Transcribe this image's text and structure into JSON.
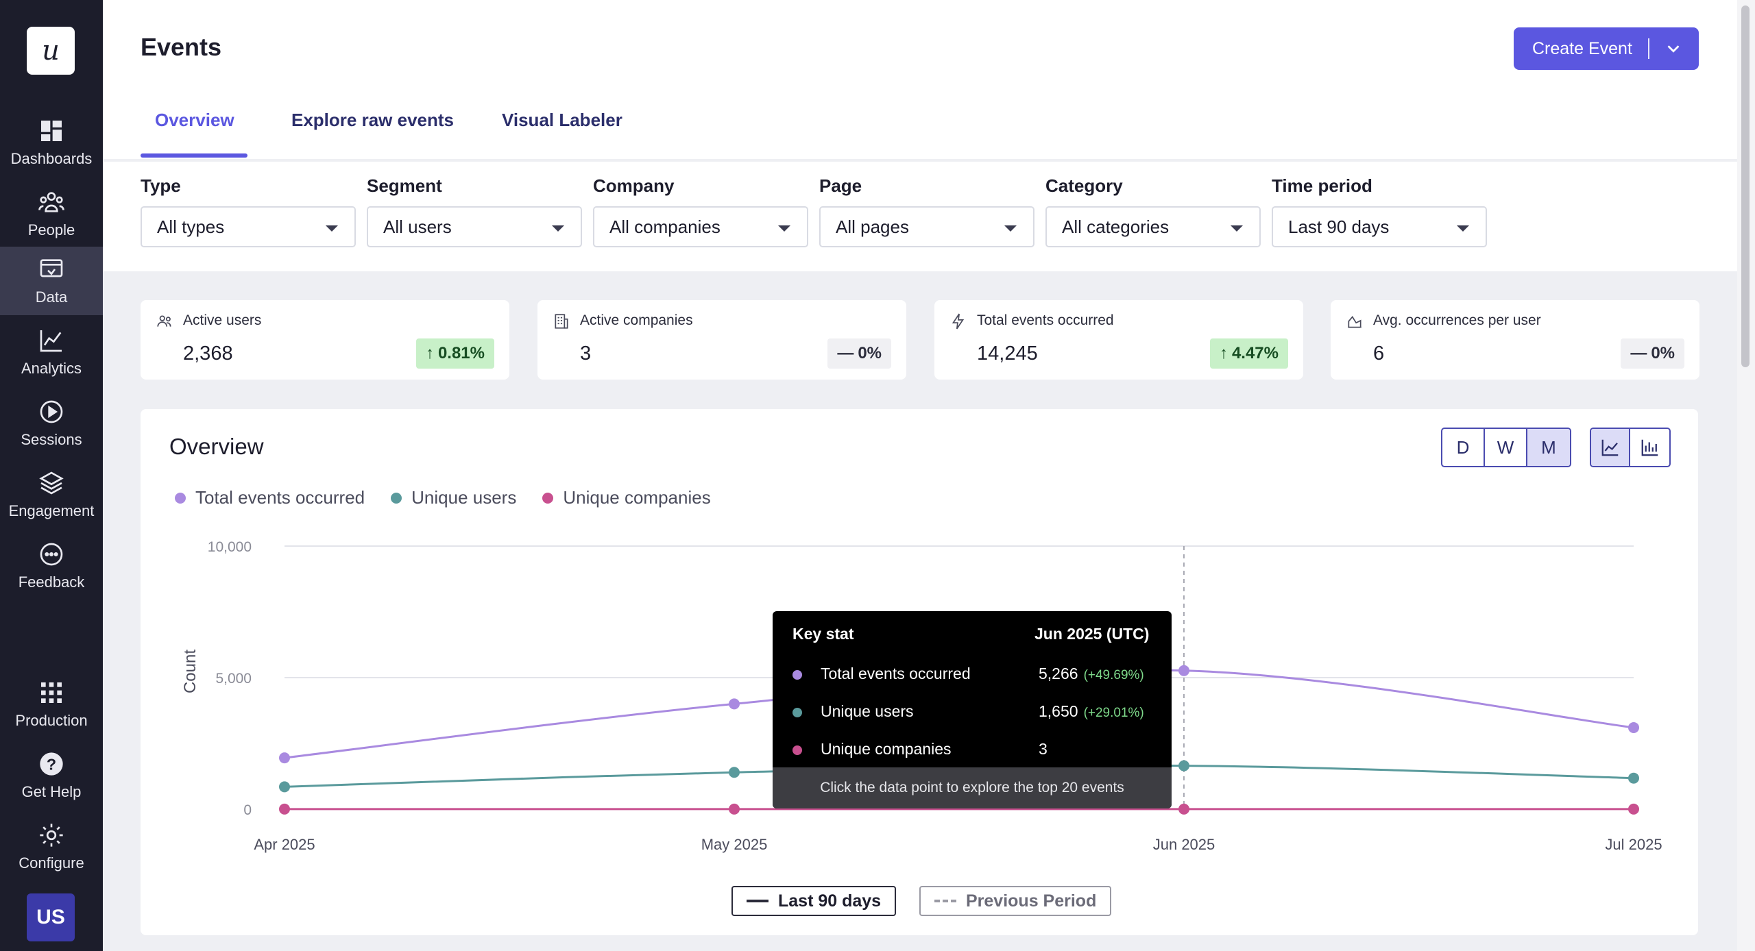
{
  "sidebar": {
    "logo": "u",
    "items": [
      {
        "label": "Dashboards",
        "icon": "dashboards-icon"
      },
      {
        "label": "People",
        "icon": "people-icon"
      },
      {
        "label": "Data",
        "icon": "data-icon",
        "active": true
      },
      {
        "label": "Analytics",
        "icon": "analytics-icon"
      },
      {
        "label": "Sessions",
        "icon": "sessions-icon"
      },
      {
        "label": "Engagement",
        "icon": "engagement-icon"
      },
      {
        "label": "Feedback",
        "icon": "feedback-icon"
      },
      {
        "label": "Production",
        "icon": "production-grid-icon"
      },
      {
        "label": "Get Help",
        "icon": "help-icon"
      },
      {
        "label": "Configure",
        "icon": "gear-icon"
      }
    ],
    "avatar": "US"
  },
  "header": {
    "title": "Events",
    "create_button": "Create Event",
    "tabs": [
      {
        "label": "Overview",
        "active": true
      },
      {
        "label": "Explore raw events"
      },
      {
        "label": "Visual Labeler"
      }
    ]
  },
  "filters": [
    {
      "label": "Type",
      "value": "All types"
    },
    {
      "label": "Segment",
      "value": "All users"
    },
    {
      "label": "Company",
      "value": "All companies"
    },
    {
      "label": "Page",
      "value": "All pages"
    },
    {
      "label": "Category",
      "value": "All categories"
    },
    {
      "label": "Time period",
      "value": "Last 90 days"
    }
  ],
  "stats": [
    {
      "title": "Active users",
      "value": "2,368",
      "change": "0.81%",
      "trend": "up",
      "icon": "users-icon"
    },
    {
      "title": "Active companies",
      "value": "3",
      "change": "0%",
      "trend": "flat",
      "icon": "building-icon"
    },
    {
      "title": "Total events occurred",
      "value": "14,245",
      "change": "4.47%",
      "trend": "up",
      "icon": "lightning-icon"
    },
    {
      "title": "Avg. occurrences per user",
      "value": "6",
      "change": "0%",
      "trend": "flat",
      "icon": "area-chart-icon"
    }
  ],
  "overview": {
    "title": "Overview",
    "granularity": [
      "D",
      "W",
      "M"
    ],
    "granularity_selected": "M",
    "view_modes": [
      "line-chart-icon",
      "bar-chart-icon"
    ],
    "view_selected": "line-chart-icon"
  },
  "tooltip": {
    "header_left": "Key stat",
    "header_right": "Jun 2025 (UTC)",
    "rows": [
      {
        "name": "Total events occurred",
        "value": "5,266",
        "change": "(+49.69%)"
      },
      {
        "name": "Unique users",
        "value": "1,650",
        "change": "(+29.01%)"
      },
      {
        "name": "Unique companies",
        "value": "3",
        "change": ""
      }
    ],
    "footer": "Click the data point to explore the top 20 events"
  },
  "period_buttons": {
    "current": "Last 90 days",
    "previous": "Previous Period"
  },
  "colors": {
    "accent": "#5b57e0",
    "total_events": "#a98ae0",
    "unique_users": "#5a9a9c",
    "unique_companies": "#c8508f",
    "sidebar_bg": "#1c1d2b"
  },
  "chart_data": {
    "type": "line",
    "x": [
      "Apr 2025",
      "May 2025",
      "Jun 2025",
      "Jul 2025"
    ],
    "ylabel": "Count",
    "ylim": [
      0,
      10000
    ],
    "yticks": [
      "0",
      "5,000",
      "10,000"
    ],
    "ytick_values": [
      0,
      5000,
      10000
    ],
    "grid": true,
    "legend_position": "top-left",
    "highlight_x": "Jun 2025",
    "series": [
      {
        "name": "Total events occurred",
        "values": [
          1950,
          4000,
          5266,
          3100
        ],
        "color": "#a98ae0"
      },
      {
        "name": "Unique users",
        "values": [
          850,
          1400,
          1650,
          1180
        ],
        "color": "#5a9a9c"
      },
      {
        "name": "Unique companies",
        "values": [
          3,
          3,
          3,
          3
        ],
        "color": "#c8508f"
      }
    ]
  }
}
